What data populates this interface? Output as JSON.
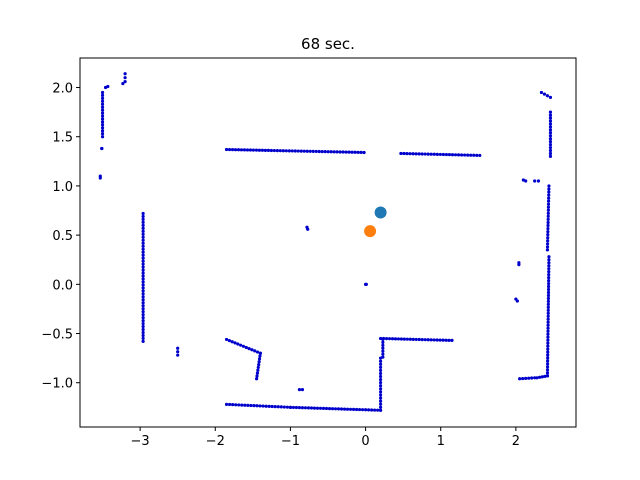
{
  "chart_data": {
    "type": "scatter",
    "title": "68 sec.",
    "xlabel": "",
    "ylabel": "",
    "xlim": [
      -3.8,
      2.8
    ],
    "ylim": [
      -1.45,
      2.3
    ],
    "xticks": [
      -3,
      -2,
      -1,
      0,
      1,
      2
    ],
    "xtick_labels": [
      "−3",
      "−2",
      "−1",
      "0",
      "1",
      "2"
    ],
    "yticks": [
      -1.0,
      -0.5,
      0.0,
      0.5,
      1.0,
      1.5,
      2.0
    ],
    "ytick_labels": [
      "−1.0",
      "−0.5",
      "0.0",
      "0.5",
      "1.0",
      "1.5",
      "2.0"
    ],
    "grid": false,
    "series": [
      {
        "color": "#0000cc",
        "marker_size": 1.6,
        "segments": [
          [
            [
              -3.5,
              1.95
            ],
            [
              -3.5,
              1.5
            ]
          ],
          [
            [
              -3.53,
              1.1
            ],
            [
              -3.53,
              1.08
            ]
          ],
          [
            [
              -3.51,
              1.38
            ],
            [
              -3.51,
              1.38
            ]
          ],
          [
            [
              -3.46,
              2.0
            ],
            [
              -3.43,
              2.01
            ]
          ],
          [
            [
              -3.23,
              2.04
            ],
            [
              -3.2,
              2.06
            ]
          ],
          [
            [
              -3.2,
              2.14
            ],
            [
              -3.2,
              2.1
            ]
          ],
          [
            [
              -2.96,
              0.72
            ],
            [
              -2.96,
              -0.58
            ]
          ],
          [
            [
              -2.5,
              -0.65
            ],
            [
              -2.5,
              -0.72
            ]
          ],
          [
            [
              -1.85,
              1.37
            ],
            [
              -0.02,
              1.34
            ]
          ],
          [
            [
              0.47,
              1.33
            ],
            [
              1.52,
              1.31
            ]
          ],
          [
            [
              -0.78,
              0.58
            ],
            [
              -0.77,
              0.56
            ]
          ],
          [
            [
              0.0,
              0.0
            ],
            [
              0.01,
              0.0
            ]
          ],
          [
            [
              -1.85,
              -0.56
            ],
            [
              -1.4,
              -0.7
            ]
          ],
          [
            [
              -1.4,
              -0.7
            ],
            [
              -1.45,
              -0.96
            ]
          ],
          [
            [
              -0.88,
              -1.07
            ],
            [
              -0.84,
              -1.07
            ]
          ],
          [
            [
              -1.85,
              -1.22
            ],
            [
              -1.0,
              -1.25
            ]
          ],
          [
            [
              -1.0,
              -1.25
            ],
            [
              0.2,
              -1.28
            ]
          ],
          [
            [
              0.2,
              -1.28
            ],
            [
              0.2,
              -0.75
            ]
          ],
          [
            [
              0.23,
              -0.74
            ],
            [
              0.23,
              -0.56
            ]
          ],
          [
            [
              0.2,
              -0.55
            ],
            [
              1.15,
              -0.57
            ]
          ],
          [
            [
              2.0,
              -0.15
            ],
            [
              2.02,
              -0.17
            ]
          ],
          [
            [
              2.04,
              0.2
            ],
            [
              2.04,
              0.22
            ]
          ],
          [
            [
              2.1,
              1.06
            ],
            [
              2.13,
              1.05
            ]
          ],
          [
            [
              2.25,
              1.05
            ],
            [
              2.3,
              1.05
            ]
          ],
          [
            [
              2.05,
              -0.96
            ],
            [
              2.25,
              -0.95
            ]
          ],
          [
            [
              2.28,
              -0.95
            ],
            [
              2.42,
              -0.93
            ]
          ],
          [
            [
              2.42,
              -0.93
            ],
            [
              2.44,
              0.28
            ]
          ],
          [
            [
              2.42,
              0.35
            ],
            [
              2.44,
              1.0
            ]
          ],
          [
            [
              2.46,
              1.3
            ],
            [
              2.46,
              1.75
            ]
          ],
          [
            [
              2.34,
              1.95
            ],
            [
              2.46,
              1.9
            ]
          ]
        ]
      },
      {
        "color": "#1f77b4",
        "points": [
          [
            0.2,
            0.73
          ]
        ],
        "marker_size": 6
      },
      {
        "color": "#ff7f0e",
        "points": [
          [
            0.06,
            0.54
          ]
        ],
        "marker_size": 6
      }
    ]
  }
}
